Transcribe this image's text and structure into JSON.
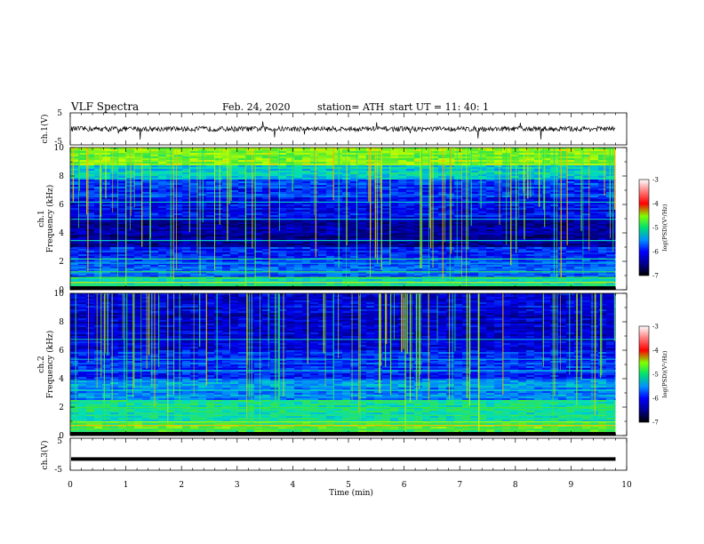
{
  "header": {
    "title": "VLF  Spectra",
    "date": "Feb. 24, 2020",
    "station": "station= ATH",
    "start": "start  UT  =   11: 40: 1"
  },
  "chart_data": [
    {
      "type": "line",
      "id": "ch1-waveform",
      "ylabel": "ch.1(V)",
      "ylim": [
        -5,
        5
      ],
      "yticks": [
        "5",
        "-5"
      ],
      "description_level": 0
    },
    {
      "type": "heatmap",
      "id": "ch1-spectrogram",
      "ylabel_line1": "ch.1",
      "ylabel_line2": "Frequency  (kHz)",
      "ylim": [
        0,
        10
      ],
      "yticks": [
        "10",
        "8",
        "6",
        "4",
        "2",
        "0"
      ],
      "colorbar": {
        "label": "log(PSD)(V²/Hz)",
        "range": [
          -7,
          -3
        ],
        "ticks": [
          "-3",
          "-4",
          "-5",
          "-6",
          "-7"
        ]
      }
    },
    {
      "type": "heatmap",
      "id": "ch2-spectrogram",
      "ylabel_line1": "ch.2",
      "ylabel_line2": "Frequency  (kHz)",
      "ylim": [
        0,
        10
      ],
      "yticks": [
        "10",
        "8",
        "6",
        "4",
        "2",
        "0"
      ],
      "colorbar": {
        "label": "log(PSD)(V²/Hz)",
        "range": [
          -7,
          -3
        ],
        "ticks": [
          "-3",
          "-4",
          "-5",
          "-6",
          "-7"
        ]
      }
    },
    {
      "type": "line",
      "id": "ch3-waveform",
      "ylabel": "ch.3(V)",
      "ylim": [
        -5,
        5
      ],
      "yticks": [
        "5",
        "-5"
      ],
      "level": -1.5
    }
  ],
  "xaxis": {
    "label": "Time  (min)",
    "range": [
      0,
      10
    ],
    "ticks": [
      "0",
      "1",
      "2",
      "3",
      "4",
      "5",
      "6",
      "7",
      "8",
      "9",
      "10"
    ],
    "data_end": 9.8
  }
}
